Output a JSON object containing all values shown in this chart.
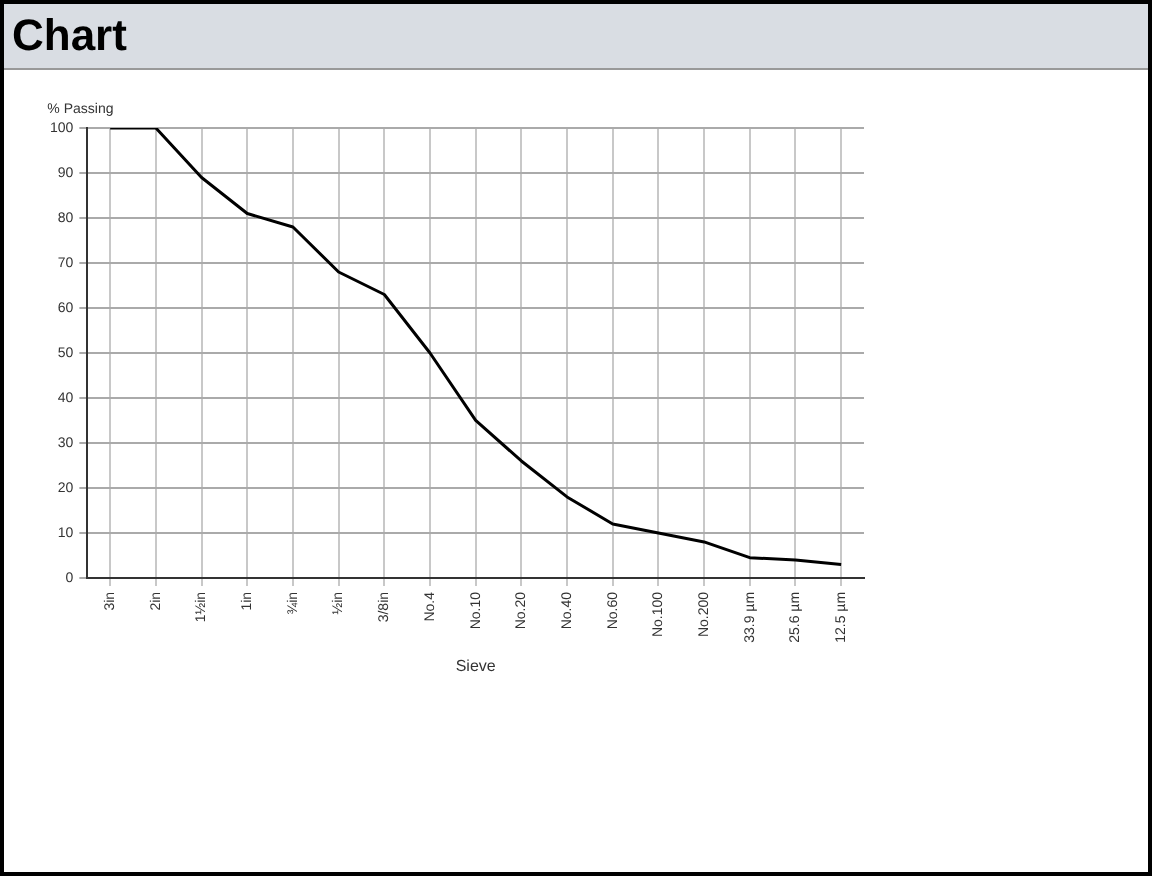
{
  "chart_data": {
    "type": "line",
    "title": "Chart",
    "xlabel": "Sieve",
    "ylabel": "% Passing",
    "categories": [
      "3in",
      "2in",
      "1½in",
      "1in",
      "¾in",
      "½in",
      "3/8in",
      "No.4",
      "No.10",
      "No.20",
      "No.40",
      "No.60",
      "No.100",
      "No.200",
      "33.9 µm",
      "25.6 µm",
      "12.5 µm"
    ],
    "series": [
      {
        "color": "#000000",
        "values": [
          100,
          100,
          89,
          81,
          78,
          68,
          63,
          50,
          35,
          26,
          18,
          12,
          10,
          8,
          4.5,
          4,
          3
        ]
      }
    ],
    "ylim": [
      0,
      100
    ],
    "yticks": [
      0,
      10,
      20,
      30,
      40,
      50,
      60,
      70,
      80,
      90,
      100
    ],
    "grid": true,
    "legend": false,
    "marker": "none",
    "line_style": "solid"
  }
}
